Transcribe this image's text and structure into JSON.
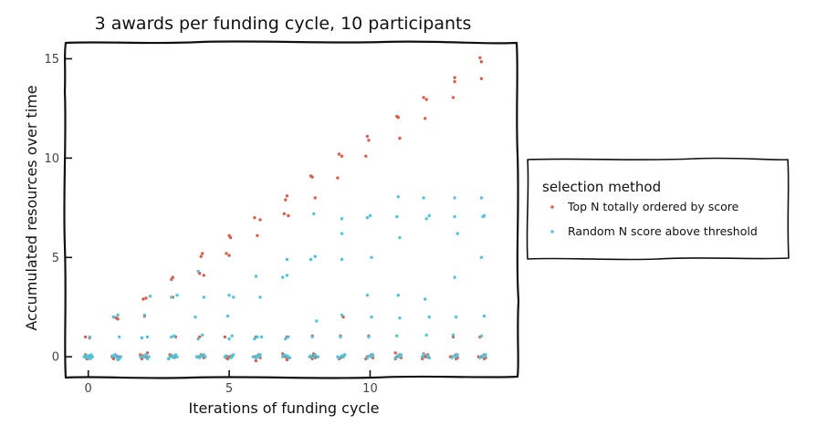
{
  "chart_data": {
    "type": "scatter",
    "title": "3 awards per funding cycle, 10 participants",
    "xlabel": "Iterations of funding cycle",
    "ylabel": "Accumulated resources over time",
    "xlim": [
      -0.8,
      15.2
    ],
    "ylim": [
      -1,
      15.8
    ],
    "x_ticks": [
      0,
      5,
      10
    ],
    "y_ticks": [
      0,
      5,
      10,
      15
    ],
    "grid": false,
    "legend": {
      "title": "selection method",
      "placement": "outside-right"
    },
    "series": [
      {
        "name": "Top N totally ordered by score",
        "color": "#e05c4b",
        "points": [
          [
            -0.1,
            1.0
          ],
          [
            0.05,
            0.95
          ],
          [
            -0.1,
            0.1
          ],
          [
            0.1,
            0.0
          ],
          [
            0.0,
            -0.05
          ],
          [
            -0.05,
            -0.1
          ],
          [
            0.1,
            0.05
          ],
          [
            0.0,
            0.0
          ],
          [
            -0.1,
            0.0
          ],
          [
            0.08,
            -0.05
          ],
          [
            0.9,
            2.0
          ],
          [
            1.0,
            1.95
          ],
          [
            1.05,
            1.9
          ],
          [
            0.85,
            0.0
          ],
          [
            1.0,
            0.05
          ],
          [
            1.1,
            -0.05
          ],
          [
            0.95,
            0.1
          ],
          [
            0.9,
            -0.1
          ],
          [
            1.1,
            0.0
          ],
          [
            1.0,
            0.0
          ],
          [
            1.95,
            2.9
          ],
          [
            2.05,
            2.95
          ],
          [
            2.0,
            2.05
          ],
          [
            1.85,
            0.1
          ],
          [
            2.1,
            0.2
          ],
          [
            1.95,
            0.05
          ],
          [
            2.0,
            0.0
          ],
          [
            2.1,
            -0.05
          ],
          [
            1.9,
            -0.1
          ],
          [
            2.05,
            0.0
          ],
          [
            3.0,
            4.0
          ],
          [
            2.95,
            3.9
          ],
          [
            3.0,
            3.0
          ],
          [
            3.1,
            1.0
          ],
          [
            2.9,
            0.1
          ],
          [
            3.0,
            0.0
          ],
          [
            3.05,
            -0.05
          ],
          [
            2.95,
            0.05
          ],
          [
            3.1,
            0.0
          ],
          [
            2.85,
            -0.1
          ],
          [
            4.05,
            5.2
          ],
          [
            4.0,
            5.05
          ],
          [
            3.95,
            4.2
          ],
          [
            4.1,
            4.1
          ],
          [
            3.95,
            1.0
          ],
          [
            4.0,
            0.1
          ],
          [
            3.9,
            0.0
          ],
          [
            4.1,
            -0.05
          ],
          [
            4.05,
            0.05
          ],
          [
            3.85,
            0.0
          ],
          [
            5.0,
            6.1
          ],
          [
            5.05,
            6.0
          ],
          [
            4.9,
            5.2
          ],
          [
            5.0,
            5.1
          ],
          [
            4.85,
            1.0
          ],
          [
            5.1,
            0.05
          ],
          [
            5.0,
            0.0
          ],
          [
            4.95,
            -0.1
          ],
          [
            5.05,
            0.0
          ],
          [
            4.9,
            -0.05
          ],
          [
            5.9,
            7.0
          ],
          [
            6.1,
            6.9
          ],
          [
            6.0,
            6.1
          ],
          [
            5.95,
            1.0
          ],
          [
            6.05,
            0.1
          ],
          [
            5.9,
            0.0
          ],
          [
            6.1,
            -0.05
          ],
          [
            6.0,
            0.05
          ],
          [
            5.95,
            -0.2
          ],
          [
            6.05,
            0.0
          ],
          [
            7.05,
            8.1
          ],
          [
            7.0,
            7.9
          ],
          [
            6.95,
            7.2
          ],
          [
            7.1,
            7.1
          ],
          [
            7.05,
            1.0
          ],
          [
            6.9,
            0.15
          ],
          [
            7.0,
            0.0
          ],
          [
            7.1,
            -0.05
          ],
          [
            6.95,
            0.05
          ],
          [
            7.05,
            -0.15
          ],
          [
            7.9,
            9.1
          ],
          [
            7.95,
            9.05
          ],
          [
            8.05,
            8.0
          ],
          [
            7.95,
            1.05
          ],
          [
            8.0,
            0.15
          ],
          [
            7.9,
            0.0
          ],
          [
            8.05,
            -0.05
          ],
          [
            8.0,
            0.05
          ],
          [
            8.1,
            0.0
          ],
          [
            7.95,
            -0.1
          ],
          [
            8.9,
            10.2
          ],
          [
            9.0,
            10.1
          ],
          [
            8.85,
            9.0
          ],
          [
            9.05,
            2.0
          ],
          [
            8.95,
            1.05
          ],
          [
            9.1,
            0.1
          ],
          [
            9.0,
            0.0
          ],
          [
            8.9,
            -0.1
          ],
          [
            9.05,
            0.0
          ],
          [
            8.95,
            -0.05
          ],
          [
            9.9,
            11.1
          ],
          [
            9.95,
            10.9
          ],
          [
            9.85,
            10.1
          ],
          [
            9.95,
            1.05
          ],
          [
            10.05,
            0.1
          ],
          [
            9.9,
            0.0
          ],
          [
            10.1,
            -0.05
          ],
          [
            10.0,
            0.05
          ],
          [
            9.85,
            -0.1
          ],
          [
            10.05,
            0.0
          ],
          [
            10.95,
            12.1
          ],
          [
            11.0,
            12.05
          ],
          [
            11.05,
            11.0
          ],
          [
            10.9,
            0.2
          ],
          [
            11.05,
            0.1
          ],
          [
            10.95,
            0.0
          ],
          [
            11.1,
            -0.05
          ],
          [
            11.0,
            0.05
          ],
          [
            10.9,
            -0.1
          ],
          [
            11.05,
            0.0
          ],
          [
            11.9,
            13.05
          ],
          [
            12.0,
            12.95
          ],
          [
            11.95,
            12.0
          ],
          [
            11.9,
            0.15
          ],
          [
            12.05,
            0.1
          ],
          [
            11.95,
            0.0
          ],
          [
            12.1,
            -0.05
          ],
          [
            12.0,
            0.05
          ],
          [
            11.85,
            -0.1
          ],
          [
            12.05,
            0.0
          ],
          [
            13.0,
            14.05
          ],
          [
            13.0,
            13.85
          ],
          [
            12.95,
            13.05
          ],
          [
            12.95,
            1.0
          ],
          [
            13.05,
            0.1
          ],
          [
            12.9,
            0.0
          ],
          [
            13.1,
            -0.05
          ],
          [
            13.0,
            0.05
          ],
          [
            12.85,
            0.0
          ],
          [
            13.05,
            -0.1
          ],
          [
            13.9,
            15.05
          ],
          [
            13.95,
            14.85
          ],
          [
            13.95,
            14.0
          ],
          [
            13.9,
            1.0
          ],
          [
            14.05,
            0.1
          ],
          [
            13.95,
            0.0
          ],
          [
            14.1,
            -0.05
          ],
          [
            14.0,
            0.05
          ],
          [
            13.85,
            0.0
          ],
          [
            14.05,
            -0.1
          ]
        ]
      },
      {
        "name": "Random N score above threshold",
        "color": "#4dc6dd",
        "points": [
          [
            0.05,
            1.0
          ],
          [
            -0.1,
            0.05
          ],
          [
            0.0,
            -0.05
          ],
          [
            0.1,
            0.1
          ],
          [
            -0.05,
            0.0
          ],
          [
            0.05,
            -0.1
          ],
          [
            0.15,
            0.0
          ],
          [
            -0.15,
            0.0
          ],
          [
            0.1,
            -0.05
          ],
          [
            0.0,
            0.05
          ],
          [
            0.9,
            2.0
          ],
          [
            1.05,
            2.1
          ],
          [
            1.1,
            1.0
          ],
          [
            0.95,
            0.1
          ],
          [
            1.0,
            0.0
          ],
          [
            1.1,
            -0.1
          ],
          [
            0.85,
            0.05
          ],
          [
            1.05,
            -0.15
          ],
          [
            0.95,
            0.0
          ],
          [
            1.15,
            0.0
          ],
          [
            2.0,
            2.1
          ],
          [
            2.2,
            3.05
          ],
          [
            2.1,
            1.0
          ],
          [
            1.9,
            0.95
          ],
          [
            2.05,
            0.1
          ],
          [
            1.95,
            0.0
          ],
          [
            2.1,
            -0.1
          ],
          [
            2.0,
            0.05
          ],
          [
            2.15,
            0.0
          ],
          [
            1.85,
            0.0
          ],
          [
            2.95,
            3.0
          ],
          [
            3.15,
            3.1
          ],
          [
            3.05,
            1.05
          ],
          [
            2.95,
            1.0
          ],
          [
            3.1,
            0.1
          ],
          [
            2.9,
            0.0
          ],
          [
            3.05,
            -0.05
          ],
          [
            3.0,
            0.05
          ],
          [
            3.15,
            0.0
          ],
          [
            2.85,
            -0.1
          ],
          [
            3.9,
            4.3
          ],
          [
            4.1,
            3.0
          ],
          [
            3.8,
            2.0
          ],
          [
            4.05,
            1.1
          ],
          [
            3.9,
            0.9
          ],
          [
            4.1,
            0.1
          ],
          [
            4.0,
            0.05
          ],
          [
            3.95,
            -0.05
          ],
          [
            4.15,
            0.0
          ],
          [
            3.85,
            0.0
          ],
          [
            5.0,
            3.1
          ],
          [
            5.15,
            3.0
          ],
          [
            4.95,
            2.05
          ],
          [
            5.1,
            1.05
          ],
          [
            5.0,
            0.9
          ],
          [
            5.15,
            0.1
          ],
          [
            4.9,
            0.05
          ],
          [
            5.05,
            -0.05
          ],
          [
            5.1,
            0.0
          ],
          [
            4.85,
            0.0
          ],
          [
            6.1,
            3.0
          ],
          [
            5.95,
            4.05
          ],
          [
            6.0,
            1.0
          ],
          [
            6.15,
            1.0
          ],
          [
            5.9,
            0.9
          ],
          [
            6.1,
            0.1
          ],
          [
            6.0,
            0.05
          ],
          [
            5.95,
            -0.05
          ],
          [
            6.05,
            0.0
          ],
          [
            5.85,
            0.0
          ],
          [
            6.9,
            4.0
          ],
          [
            7.05,
            4.1
          ],
          [
            7.05,
            4.9
          ],
          [
            7.1,
            1.0
          ],
          [
            7.0,
            0.9
          ],
          [
            6.95,
            0.1
          ],
          [
            7.05,
            0.05
          ],
          [
            7.15,
            -0.05
          ],
          [
            6.9,
            0.0
          ],
          [
            7.1,
            0.0
          ],
          [
            7.9,
            4.9
          ],
          [
            8.05,
            5.05
          ],
          [
            8.0,
            7.2
          ],
          [
            8.1,
            1.8
          ],
          [
            7.95,
            1.0
          ],
          [
            8.05,
            0.1
          ],
          [
            7.9,
            0.05
          ],
          [
            8.0,
            -0.05
          ],
          [
            8.15,
            0.0
          ],
          [
            7.85,
            0.0
          ],
          [
            9.0,
            6.2
          ],
          [
            9.0,
            6.95
          ],
          [
            9.0,
            4.9
          ],
          [
            9.0,
            2.1
          ],
          [
            8.95,
            1.0
          ],
          [
            9.1,
            0.1
          ],
          [
            9.0,
            0.05
          ],
          [
            8.9,
            -0.05
          ],
          [
            9.05,
            0.0
          ],
          [
            8.85,
            0.0
          ],
          [
            9.9,
            7.0
          ],
          [
            10.0,
            7.1
          ],
          [
            10.05,
            5.0
          ],
          [
            9.9,
            3.1
          ],
          [
            10.05,
            2.0
          ],
          [
            9.95,
            1.0
          ],
          [
            10.1,
            0.1
          ],
          [
            10.0,
            0.05
          ],
          [
            9.9,
            -0.05
          ],
          [
            10.05,
            0.0
          ],
          [
            10.95,
            7.05
          ],
          [
            11.0,
            8.05
          ],
          [
            11.05,
            6.0
          ],
          [
            11.0,
            3.1
          ],
          [
            11.05,
            1.95
          ],
          [
            10.95,
            1.05
          ],
          [
            11.1,
            0.1
          ],
          [
            11.0,
            0.05
          ],
          [
            10.9,
            -0.05
          ],
          [
            11.05,
            0.0
          ],
          [
            11.9,
            8.0
          ],
          [
            12.1,
            7.1
          ],
          [
            12.0,
            6.95
          ],
          [
            11.95,
            2.9
          ],
          [
            12.1,
            2.0
          ],
          [
            12.0,
            1.1
          ],
          [
            11.9,
            0.1
          ],
          [
            12.05,
            0.05
          ],
          [
            12.1,
            -0.05
          ],
          [
            11.85,
            0.0
          ],
          [
            13.0,
            8.0
          ],
          [
            13.0,
            7.05
          ],
          [
            13.1,
            6.2
          ],
          [
            13.0,
            4.0
          ],
          [
            13.05,
            2.0
          ],
          [
            12.95,
            1.1
          ],
          [
            13.1,
            0.1
          ],
          [
            13.0,
            0.05
          ],
          [
            12.9,
            -0.05
          ],
          [
            13.05,
            0.0
          ],
          [
            13.95,
            8.0
          ],
          [
            14.05,
            7.1
          ],
          [
            14.0,
            7.05
          ],
          [
            13.95,
            5.0
          ],
          [
            14.05,
            2.05
          ],
          [
            13.95,
            1.05
          ],
          [
            14.1,
            0.1
          ],
          [
            14.0,
            0.05
          ],
          [
            13.9,
            -0.05
          ],
          [
            14.05,
            0.0
          ]
        ]
      }
    ]
  }
}
